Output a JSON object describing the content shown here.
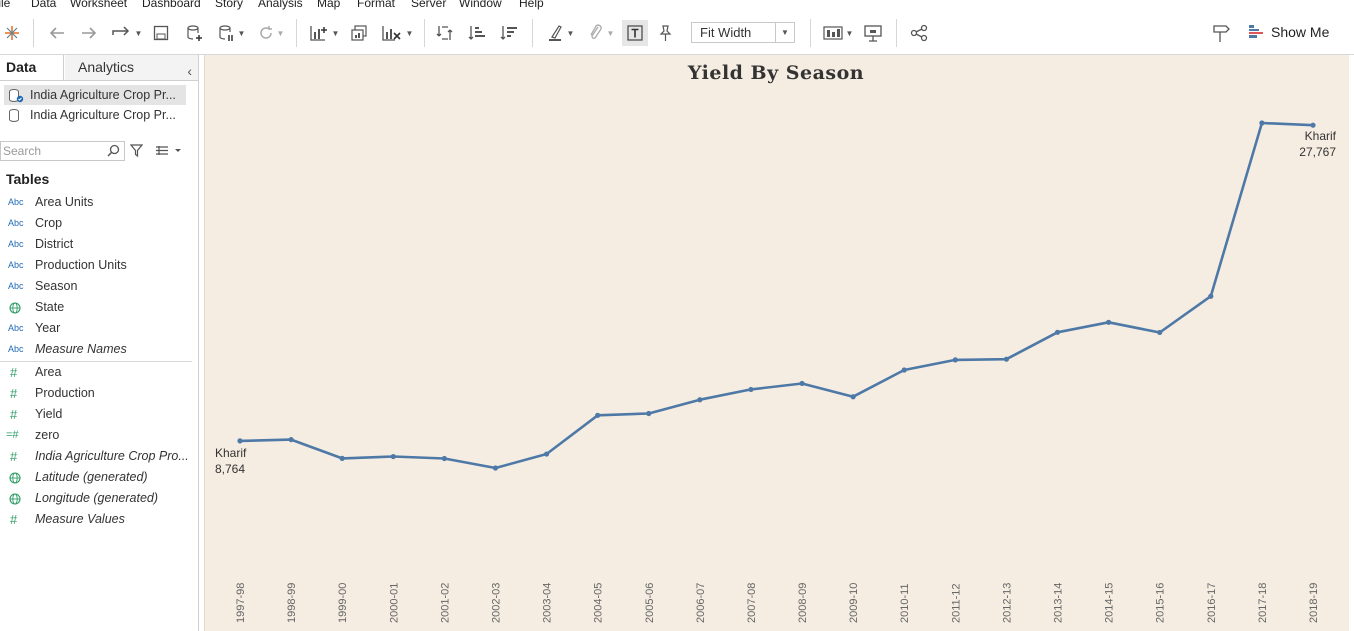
{
  "menu": {
    "items": [
      "File",
      "Data",
      "Worksheet",
      "Dashboard",
      "Story",
      "Analysis",
      "Map",
      "Format",
      "Server",
      "Window",
      "Help"
    ]
  },
  "toolbar": {
    "fit_label": "Fit Width",
    "show_me_label": "Show Me",
    "accent": "#5b8cc8"
  },
  "left_pane": {
    "tab_data": "Data",
    "tab_analytics": "Analytics",
    "datasources": [
      "India Agriculture Crop Pr...",
      "India Agriculture Crop Pr..."
    ],
    "search_placeholder": "Search",
    "tables_header": "Tables",
    "dimensions": [
      {
        "type": "Abc",
        "name": "Area Units"
      },
      {
        "type": "Abc",
        "name": "Crop"
      },
      {
        "type": "Abc",
        "name": "District"
      },
      {
        "type": "Abc",
        "name": "Production Units"
      },
      {
        "type": "Abc",
        "name": "Season"
      },
      {
        "type": "globe",
        "name": "State"
      },
      {
        "type": "Abc",
        "name": "Year"
      },
      {
        "type": "Abc",
        "name": "Measure Names",
        "italic": true
      }
    ],
    "measures": [
      {
        "type": "#",
        "name": "Area"
      },
      {
        "type": "#",
        "name": "Production"
      },
      {
        "type": "#",
        "name": "Yield"
      },
      {
        "type": "=#",
        "name": "zero"
      },
      {
        "type": "#",
        "name": "India Agriculture Crop Pro...",
        "italic": true
      },
      {
        "type": "globe",
        "name": "Latitude (generated)",
        "italic": true
      },
      {
        "type": "globe",
        "name": "Longitude (generated)",
        "italic": true
      },
      {
        "type": "#",
        "name": "Measure Values",
        "italic": true
      }
    ]
  },
  "chart_data": {
    "type": "line",
    "title": "Yield By Season",
    "xlabel": "",
    "ylabel": "",
    "grid": false,
    "line_color": "#4e79a7",
    "background": "#f5ede2",
    "categories": [
      "1997-98",
      "1998-99",
      "1999-00",
      "2000-01",
      "2001-02",
      "2002-03",
      "2003-04",
      "2004-05",
      "2005-06",
      "2006-07",
      "2007-08",
      "2008-09",
      "2009-10",
      "2010-11",
      "2011-12",
      "2012-13",
      "2013-14",
      "2014-15",
      "2015-16",
      "2016-17",
      "2017-18",
      "2018-19"
    ],
    "series": [
      {
        "name": "Kharif",
        "values": [
          8764,
          8840,
          7710,
          7820,
          7700,
          7130,
          7970,
          10300,
          10410,
          11240,
          11860,
          12220,
          11420,
          13030,
          13640,
          13680,
          15300,
          15900,
          15290,
          17470,
          27900,
          27767
        ]
      }
    ],
    "ylim": [
      -5000,
      32000
    ],
    "annotations": [
      {
        "category": "1997-98",
        "series": "Kharif",
        "value_text": "8,764",
        "position": "left-below"
      },
      {
        "category": "2018-19",
        "series": "Kharif",
        "value_text": "27,767",
        "position": "right-below"
      }
    ]
  }
}
